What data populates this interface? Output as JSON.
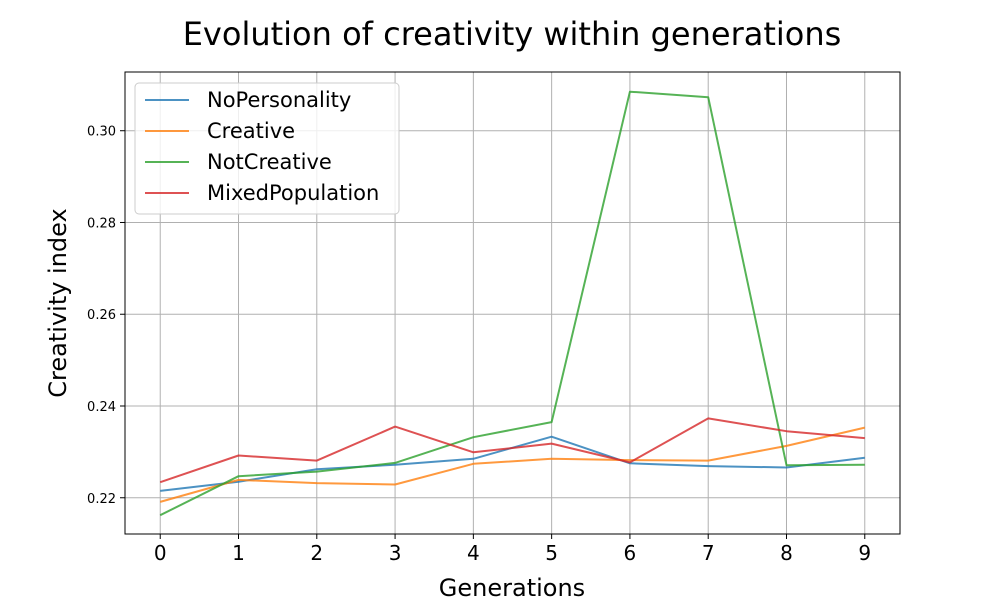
{
  "chart_data": {
    "type": "line",
    "title": "Evolution of creativity within generations",
    "xlabel": "Generations",
    "ylabel": "Creativity index",
    "x": [
      0,
      1,
      2,
      3,
      4,
      5,
      6,
      7,
      8,
      9
    ],
    "xlim": [
      -0.45,
      9.45
    ],
    "ylim": [
      0.2121,
      0.3128
    ],
    "xticks": [
      "0",
      "1",
      "2",
      "3",
      "4",
      "5",
      "6",
      "7",
      "8",
      "9"
    ],
    "yticks": [
      0.22,
      0.24,
      0.26,
      0.28,
      0.3
    ],
    "ytick_labels": [
      "0.22",
      "0.24",
      "0.26",
      "0.28",
      "0.30"
    ],
    "grid": true,
    "legend_position": "upper-left",
    "series": [
      {
        "name": "NoPersonality",
        "color": "#1f77b4",
        "values": [
          0.2215,
          0.2235,
          0.2262,
          0.2272,
          0.2285,
          0.2333,
          0.2275,
          0.2269,
          0.2266,
          0.2287
        ]
      },
      {
        "name": "Creative",
        "color": "#ff7f0e",
        "values": [
          0.2191,
          0.2239,
          0.2232,
          0.2229,
          0.2274,
          0.2285,
          0.2282,
          0.2281,
          0.2313,
          0.2353
        ]
      },
      {
        "name": "NotCreative",
        "color": "#2ca02c",
        "values": [
          0.2162,
          0.2247,
          0.2257,
          0.2276,
          0.2332,
          0.2365,
          0.3085,
          0.3073,
          0.2271,
          0.2272
        ]
      },
      {
        "name": "MixedPopulation",
        "color": "#d62728",
        "values": [
          0.2234,
          0.2292,
          0.2281,
          0.2355,
          0.2299,
          0.2318,
          0.2277,
          0.2373,
          0.2345,
          0.233
        ]
      }
    ]
  }
}
